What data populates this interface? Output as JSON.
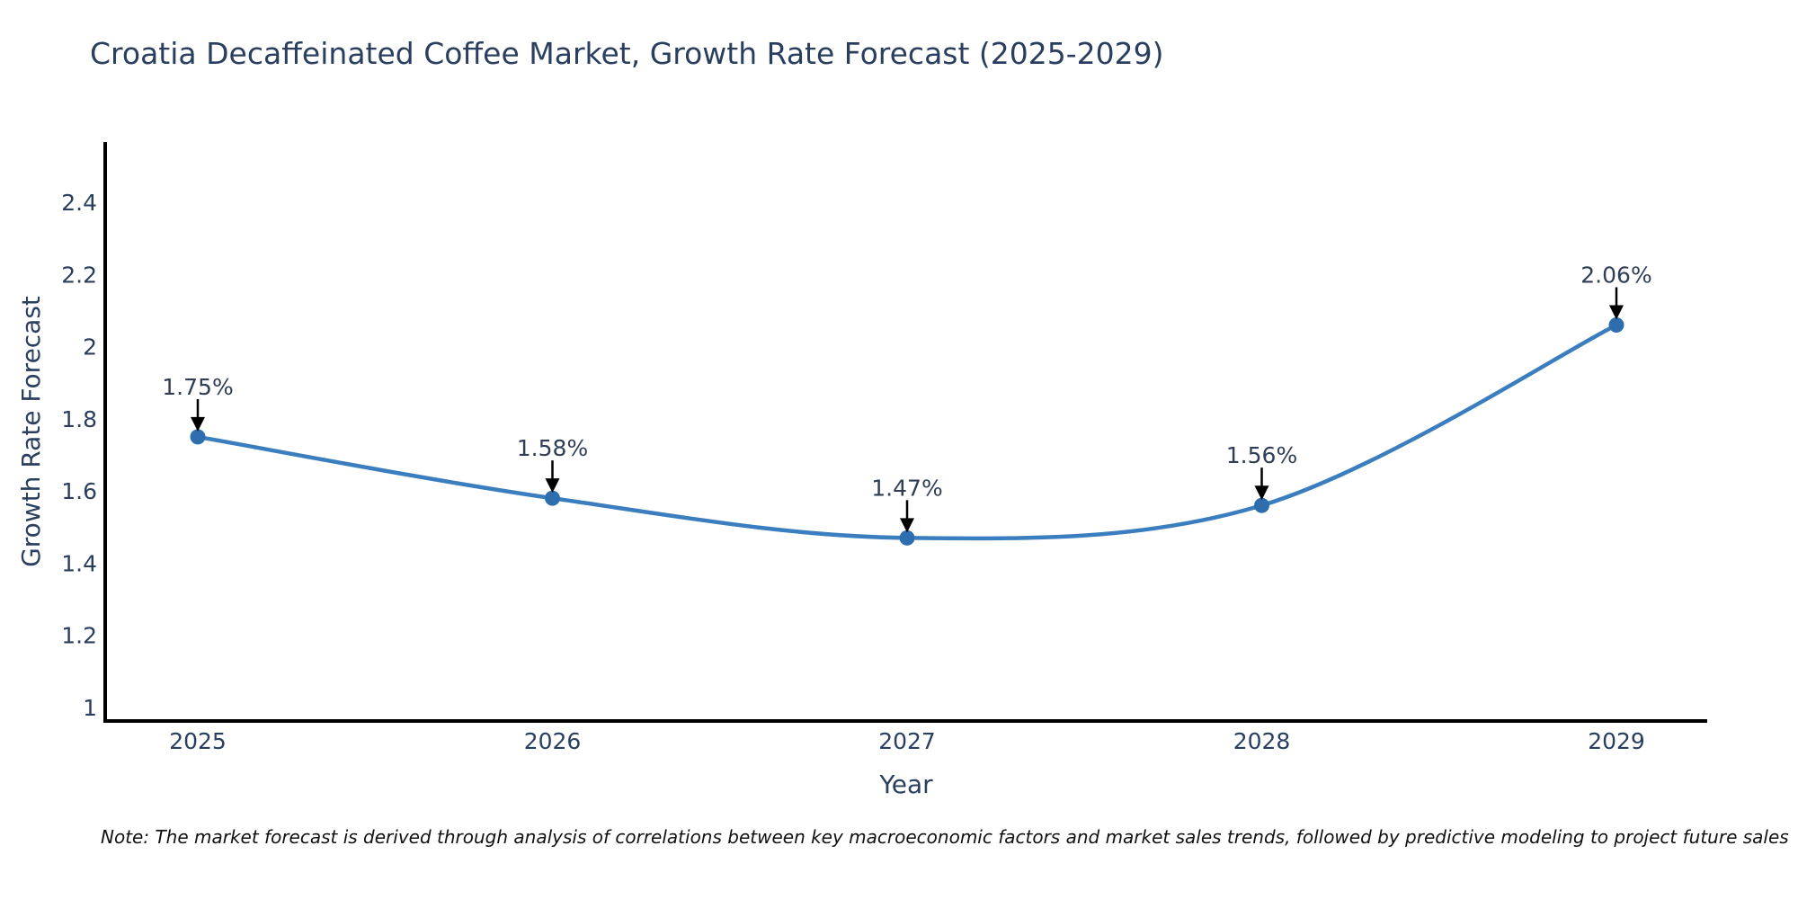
{
  "title": "Croatia Decaffeinated Coffee Market, Growth Rate Forecast (2025-2029)",
  "note": "Note: The market forecast is derived through analysis of correlations between key macroeconomic factors and market sales trends, followed by predictive modeling to project future sales",
  "chart_data": {
    "type": "line",
    "title": "Croatia Decaffeinated Coffee Market, Growth Rate Forecast (2025-2029)",
    "xlabel": "Year",
    "ylabel": "Growth Rate Forecast",
    "x": [
      2025,
      2026,
      2027,
      2028,
      2029
    ],
    "series": [
      {
        "name": "Growth Rate Forecast",
        "values": [
          1.75,
          1.58,
          1.47,
          1.56,
          2.06
        ]
      }
    ],
    "point_labels": [
      "1.75%",
      "1.58%",
      "1.47%",
      "1.56%",
      "2.06%"
    ],
    "x_tick_labels": [
      "2025",
      "2026",
      "2027",
      "2028",
      "2029"
    ],
    "y_ticks": [
      1,
      1.2,
      1.4,
      1.6,
      1.8,
      2,
      2.2,
      2.4
    ],
    "y_tick_labels": [
      "1",
      "1.2",
      "1.4",
      "1.6",
      "1.8",
      "2",
      "2.2",
      "2.4"
    ],
    "ylim": [
      0.96,
      2.57
    ],
    "grid": false,
    "legend_position": "none",
    "line_shape": "spline",
    "marker_annotations": "arrow-down",
    "colors": {
      "line": "#3a7ebf",
      "marker": "#2f6eae",
      "axis": "#000000",
      "text": "#2a3f5f",
      "annotation_arrow": "#000000"
    }
  }
}
